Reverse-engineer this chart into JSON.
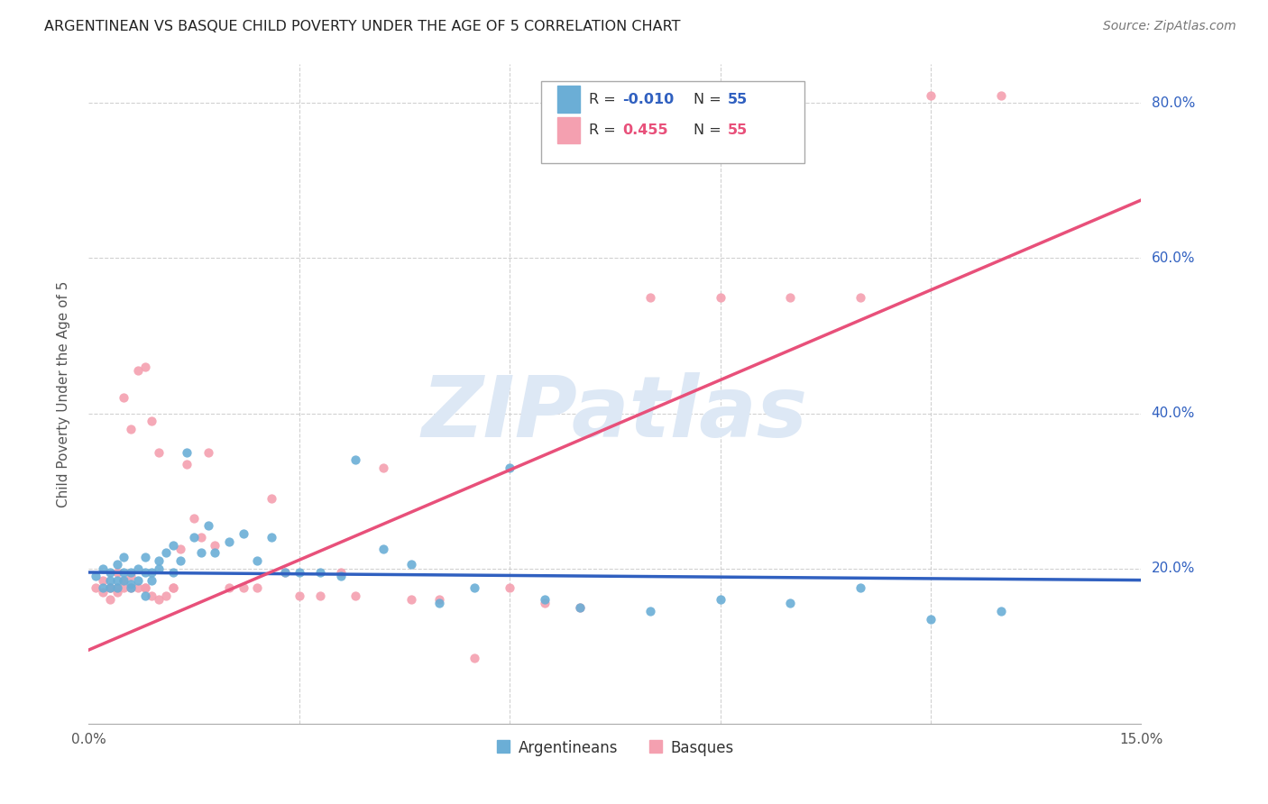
{
  "title": "ARGENTINEAN VS BASQUE CHILD POVERTY UNDER THE AGE OF 5 CORRELATION CHART",
  "source": "Source: ZipAtlas.com",
  "ylabel": "Child Poverty Under the Age of 5",
  "xmin": 0.0,
  "xmax": 0.15,
  "ymin": 0.0,
  "ymax": 0.85,
  "ytick_vals": [
    0.2,
    0.4,
    0.6,
    0.8
  ],
  "ytick_labels": [
    "20.0%",
    "40.0%",
    "60.0%",
    "80.0%"
  ],
  "xtick_vals": [
    0.0,
    0.03,
    0.06,
    0.09,
    0.12,
    0.15
  ],
  "xtick_labels": [
    "0.0%",
    "",
    "",
    "",
    "",
    "15.0%"
  ],
  "grid_color": "#cccccc",
  "bg_color": "#ffffff",
  "watermark": "ZIPatlas",
  "color_argentinean": "#6baed6",
  "color_basque": "#f4a0b0",
  "line_blue_color": "#3060c0",
  "line_pink_color": "#e8507a",
  "dot_size": 55,
  "arg_x": [
    0.001,
    0.002,
    0.002,
    0.003,
    0.003,
    0.004,
    0.004,
    0.005,
    0.005,
    0.005,
    0.006,
    0.006,
    0.007,
    0.007,
    0.008,
    0.008,
    0.009,
    0.009,
    0.01,
    0.01,
    0.011,
    0.012,
    0.013,
    0.014,
    0.015,
    0.016,
    0.017,
    0.018,
    0.02,
    0.022,
    0.024,
    0.026,
    0.028,
    0.03,
    0.033,
    0.036,
    0.038,
    0.042,
    0.046,
    0.05,
    0.055,
    0.06,
    0.065,
    0.07,
    0.08,
    0.09,
    0.1,
    0.11,
    0.12,
    0.13,
    0.003,
    0.004,
    0.006,
    0.008,
    0.012
  ],
  "arg_y": [
    0.19,
    0.175,
    0.2,
    0.185,
    0.195,
    0.175,
    0.205,
    0.185,
    0.195,
    0.215,
    0.18,
    0.195,
    0.185,
    0.2,
    0.195,
    0.215,
    0.195,
    0.185,
    0.2,
    0.21,
    0.22,
    0.23,
    0.21,
    0.35,
    0.24,
    0.22,
    0.255,
    0.22,
    0.235,
    0.245,
    0.21,
    0.24,
    0.195,
    0.195,
    0.195,
    0.19,
    0.34,
    0.225,
    0.205,
    0.155,
    0.175,
    0.33,
    0.16,
    0.15,
    0.145,
    0.16,
    0.155,
    0.175,
    0.135,
    0.145,
    0.175,
    0.185,
    0.175,
    0.165,
    0.195
  ],
  "bas_x": [
    0.001,
    0.002,
    0.002,
    0.003,
    0.003,
    0.004,
    0.004,
    0.005,
    0.005,
    0.005,
    0.006,
    0.006,
    0.007,
    0.007,
    0.008,
    0.008,
    0.009,
    0.009,
    0.01,
    0.01,
    0.011,
    0.012,
    0.013,
    0.014,
    0.015,
    0.016,
    0.017,
    0.018,
    0.02,
    0.022,
    0.024,
    0.026,
    0.028,
    0.03,
    0.033,
    0.036,
    0.038,
    0.042,
    0.046,
    0.05,
    0.055,
    0.06,
    0.065,
    0.07,
    0.08,
    0.09,
    0.1,
    0.11,
    0.12,
    0.13,
    0.003,
    0.004,
    0.006,
    0.008,
    0.012
  ],
  "bas_y": [
    0.175,
    0.17,
    0.185,
    0.16,
    0.175,
    0.195,
    0.17,
    0.185,
    0.42,
    0.175,
    0.19,
    0.38,
    0.175,
    0.455,
    0.175,
    0.46,
    0.165,
    0.39,
    0.16,
    0.35,
    0.165,
    0.175,
    0.225,
    0.335,
    0.265,
    0.24,
    0.35,
    0.23,
    0.175,
    0.175,
    0.175,
    0.29,
    0.195,
    0.165,
    0.165,
    0.195,
    0.165,
    0.33,
    0.16,
    0.16,
    0.085,
    0.175,
    0.155,
    0.15,
    0.55,
    0.55,
    0.55,
    0.55,
    0.81,
    0.81,
    0.175,
    0.175,
    0.175,
    0.175,
    0.175
  ],
  "blue_line_x": [
    0.0,
    0.15
  ],
  "blue_line_y": [
    0.195,
    0.185
  ],
  "pink_line_x": [
    0.0,
    0.15
  ],
  "pink_line_y": [
    0.095,
    0.675
  ]
}
